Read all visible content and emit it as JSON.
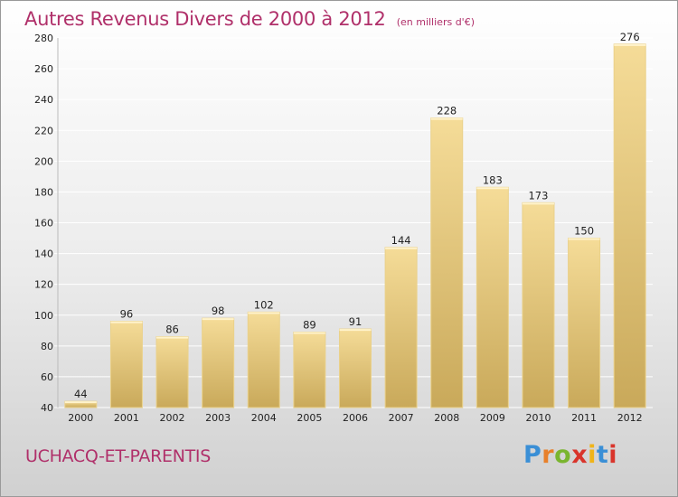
{
  "title": "Autres Revenus Divers de 2000 à 2012",
  "unit_note": "(en milliers d'€)",
  "commune": "UCHACQ-ET-PARENTIS",
  "logo": {
    "letters": [
      "P",
      "r",
      "o",
      "x",
      "i",
      "t",
      "i"
    ],
    "colors": [
      "#3a8fd6",
      "#e8802a",
      "#7ab52f",
      "#d9342b",
      "#f0b418",
      "#3a8fd6",
      "#d9342b"
    ]
  },
  "colors": {
    "bar_light": "#f5dc98",
    "bar_dark": "#c9a95a",
    "grid": "#ffffff",
    "axis_text": "#222222"
  },
  "chart_data": {
    "type": "bar",
    "categories": [
      "2000",
      "2001",
      "2002",
      "2003",
      "2004",
      "2005",
      "2006",
      "2007",
      "2008",
      "2009",
      "2010",
      "2011",
      "2012"
    ],
    "values": [
      44,
      96,
      86,
      98,
      102,
      89,
      91,
      144,
      228,
      183,
      173,
      150,
      276
    ],
    "ylim": [
      40,
      280
    ],
    "yticks": [
      40,
      60,
      80,
      100,
      120,
      140,
      160,
      180,
      200,
      220,
      240,
      260,
      280
    ],
    "grid": true,
    "legend": "none"
  }
}
